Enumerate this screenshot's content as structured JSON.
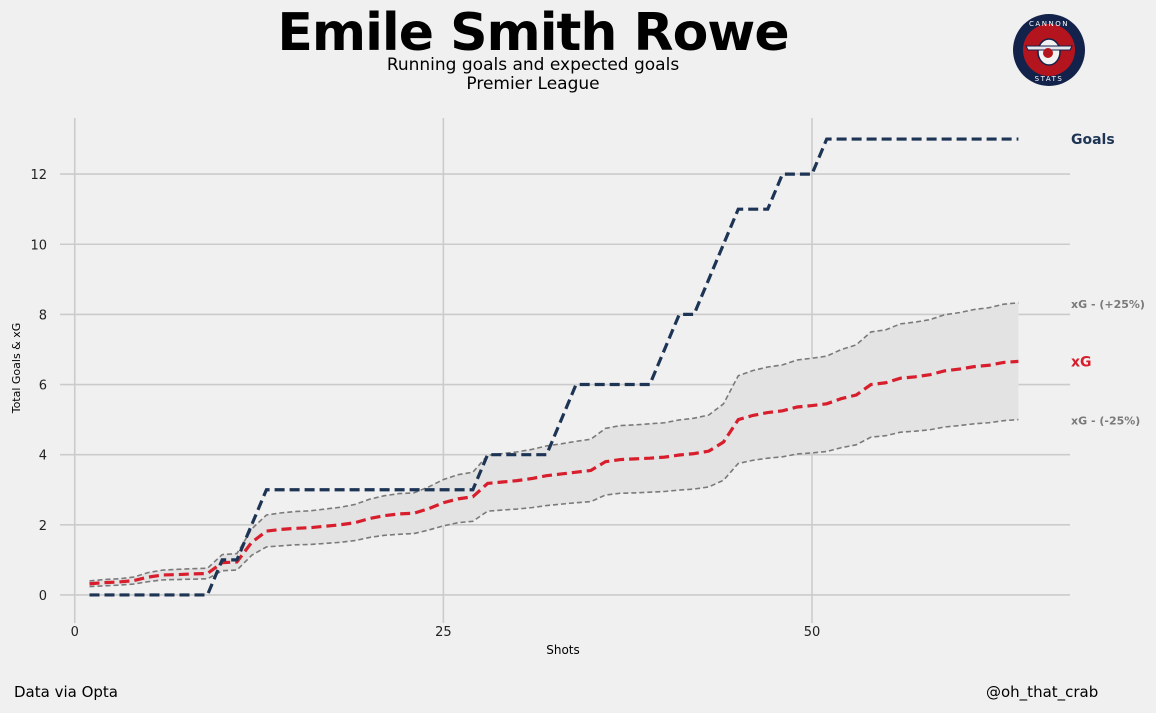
{
  "header": {
    "title": "Emile Smith Rowe",
    "subtitle": "Running goals and expected goals",
    "competition": "Premier League"
  },
  "footer": {
    "source": "Data via Opta",
    "handle": "@oh_that_crab"
  },
  "logo": {
    "top_text": "CANNON",
    "bottom_text": "STATS"
  },
  "colors": {
    "goals": "#1d3455",
    "xg": "#d81e2c",
    "band": "#7a7a7a",
    "band_fill": "#e3e3e3",
    "grid": "#cbcbcb"
  },
  "chart_data": {
    "type": "line",
    "title": "Emile Smith Rowe",
    "xlabel": "Shots",
    "ylabel": "Total Goals & xG",
    "xlim": [
      -1,
      67.5
    ],
    "ylim": [
      -0.8,
      13.6
    ],
    "xticks": [
      0,
      25,
      50
    ],
    "yticks": [
      0,
      2,
      4,
      6,
      8,
      10,
      12
    ],
    "grid": true,
    "series": [
      {
        "name": "Goals",
        "label": "Goals",
        "style": "dashed",
        "x": [
          1,
          2,
          3,
          4,
          5,
          6,
          7,
          8,
          9,
          10,
          11,
          12,
          13,
          14,
          15,
          16,
          17,
          18,
          19,
          20,
          21,
          22,
          23,
          24,
          25,
          26,
          27,
          28,
          29,
          30,
          31,
          32,
          33,
          34,
          35,
          36,
          37,
          38,
          39,
          40,
          41,
          42,
          43,
          44,
          45,
          46,
          47,
          48,
          49,
          50,
          51,
          52,
          53,
          54,
          55,
          56,
          57,
          58,
          59,
          60,
          61,
          62,
          63,
          64
        ],
        "values": [
          0,
          0,
          0,
          0,
          0,
          0,
          0,
          0,
          0,
          1,
          1,
          2,
          3,
          3,
          3,
          3,
          3,
          3,
          3,
          3,
          3,
          3,
          3,
          3,
          3,
          3,
          3,
          4,
          4,
          4,
          4,
          4,
          5,
          6,
          6,
          6,
          6,
          6,
          6,
          7,
          8,
          8,
          9,
          10,
          11,
          11,
          11,
          12,
          12,
          12,
          13,
          13,
          13,
          13,
          13,
          13,
          13,
          13,
          13,
          13,
          13,
          13,
          13,
          13
        ]
      },
      {
        "name": "xG",
        "label": "xG",
        "style": "dashed",
        "x": [
          1,
          2,
          3,
          4,
          5,
          6,
          7,
          8,
          9,
          10,
          11,
          12,
          13,
          14,
          15,
          16,
          17,
          18,
          19,
          20,
          21,
          22,
          23,
          24,
          25,
          26,
          27,
          28,
          29,
          30,
          31,
          32,
          33,
          34,
          35,
          36,
          37,
          38,
          39,
          40,
          41,
          42,
          43,
          44,
          45,
          46,
          47,
          48,
          49,
          50,
          51,
          52,
          53,
          54,
          55,
          56,
          57,
          58,
          59,
          60,
          61,
          62,
          63,
          64
        ],
        "values": [
          0.32,
          0.35,
          0.37,
          0.41,
          0.51,
          0.57,
          0.58,
          0.6,
          0.61,
          0.92,
          0.94,
          1.5,
          1.82,
          1.87,
          1.9,
          1.92,
          1.96,
          2.0,
          2.06,
          2.18,
          2.26,
          2.31,
          2.33,
          2.46,
          2.63,
          2.74,
          2.8,
          3.18,
          3.22,
          3.26,
          3.32,
          3.4,
          3.45,
          3.5,
          3.55,
          3.8,
          3.86,
          3.88,
          3.9,
          3.93,
          3.99,
          4.03,
          4.1,
          4.36,
          5.0,
          5.12,
          5.2,
          5.25,
          5.36,
          5.4,
          5.45,
          5.6,
          5.7,
          6.0,
          6.05,
          6.18,
          6.22,
          6.28,
          6.39,
          6.44,
          6.51,
          6.55,
          6.63,
          6.66
        ]
      },
      {
        "name": "xG - (+25%)",
        "label": "xG - (+25%)",
        "style": "dashed-thin",
        "x": [
          1,
          2,
          3,
          4,
          5,
          6,
          7,
          8,
          9,
          10,
          11,
          12,
          13,
          14,
          15,
          16,
          17,
          18,
          19,
          20,
          21,
          22,
          23,
          24,
          25,
          26,
          27,
          28,
          29,
          30,
          31,
          32,
          33,
          34,
          35,
          36,
          37,
          38,
          39,
          40,
          41,
          42,
          43,
          44,
          45,
          46,
          47,
          48,
          49,
          50,
          51,
          52,
          53,
          54,
          55,
          56,
          57,
          58,
          59,
          60,
          61,
          62,
          63,
          64
        ],
        "values": [
          0.4,
          0.44,
          0.46,
          0.51,
          0.64,
          0.71,
          0.73,
          0.75,
          0.76,
          1.15,
          1.18,
          1.88,
          2.28,
          2.34,
          2.38,
          2.4,
          2.45,
          2.5,
          2.58,
          2.73,
          2.83,
          2.89,
          2.91,
          3.08,
          3.29,
          3.43,
          3.5,
          3.98,
          4.03,
          4.08,
          4.15,
          4.25,
          4.31,
          4.38,
          4.44,
          4.75,
          4.83,
          4.85,
          4.88,
          4.91,
          4.99,
          5.04,
          5.13,
          5.45,
          6.25,
          6.4,
          6.5,
          6.56,
          6.7,
          6.75,
          6.81,
          7.0,
          7.13,
          7.5,
          7.56,
          7.73,
          7.78,
          7.85,
          7.99,
          8.05,
          8.14,
          8.19,
          8.29,
          8.33
        ]
      },
      {
        "name": "xG - (-25%)",
        "label": "xG - (-25%)",
        "style": "dashed-thin",
        "x": [
          1,
          2,
          3,
          4,
          5,
          6,
          7,
          8,
          9,
          10,
          11,
          12,
          13,
          14,
          15,
          16,
          17,
          18,
          19,
          20,
          21,
          22,
          23,
          24,
          25,
          26,
          27,
          28,
          29,
          30,
          31,
          32,
          33,
          34,
          35,
          36,
          37,
          38,
          39,
          40,
          41,
          42,
          43,
          44,
          45,
          46,
          47,
          48,
          49,
          50,
          51,
          52,
          53,
          54,
          55,
          56,
          57,
          58,
          59,
          60,
          61,
          62,
          63,
          64
        ],
        "values": [
          0.24,
          0.26,
          0.28,
          0.31,
          0.38,
          0.43,
          0.44,
          0.45,
          0.46,
          0.69,
          0.71,
          1.13,
          1.37,
          1.4,
          1.43,
          1.44,
          1.47,
          1.5,
          1.55,
          1.64,
          1.7,
          1.73,
          1.75,
          1.85,
          1.97,
          2.06,
          2.1,
          2.39,
          2.42,
          2.45,
          2.49,
          2.55,
          2.59,
          2.63,
          2.66,
          2.85,
          2.9,
          2.91,
          2.93,
          2.95,
          2.99,
          3.02,
          3.08,
          3.27,
          3.75,
          3.84,
          3.9,
          3.94,
          4.02,
          4.05,
          4.09,
          4.2,
          4.28,
          4.5,
          4.54,
          4.64,
          4.67,
          4.71,
          4.79,
          4.83,
          4.88,
          4.91,
          4.97,
          5.0
        ]
      }
    ]
  }
}
